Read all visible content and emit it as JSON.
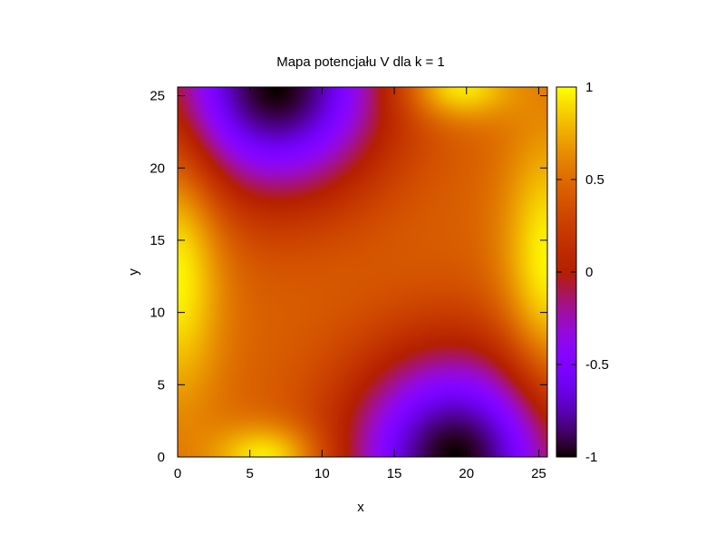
{
  "chart_data": {
    "type": "heatmap",
    "title": "Mapa potencjału V dla k = 1",
    "xlabel": "x",
    "ylabel": "y",
    "xlim": [
      0,
      25.6
    ],
    "ylim": [
      0,
      25.6
    ],
    "x_ticks": [
      0,
      5,
      10,
      15,
      20,
      25
    ],
    "y_ticks": [
      0,
      5,
      10,
      15,
      20,
      25
    ],
    "x_tick_labels": [
      "0",
      "5",
      "10",
      "15",
      "20",
      "25"
    ],
    "y_tick_labels": [
      "0",
      "5",
      "10",
      "15",
      "20",
      "25"
    ],
    "colorbar": {
      "range": [
        -1,
        1
      ],
      "ticks": [
        -1,
        -0.5,
        0,
        0.5,
        1
      ],
      "tick_labels": [
        "-1",
        "-0.5",
        "0",
        "0.5",
        "1"
      ],
      "palette": "gnuplot (black-purple-red-orange-yellow)"
    },
    "features": [
      {
        "kind": "minimum",
        "value": -1,
        "x": 6.8,
        "y": 25.6
      },
      {
        "kind": "minimum",
        "value": -1,
        "x": 19.2,
        "y": 0
      },
      {
        "kind": "maximum",
        "value": 1,
        "x": 6.2,
        "y": 0
      },
      {
        "kind": "maximum",
        "value": 1,
        "x": 19.4,
        "y": 25.6
      },
      {
        "kind": "maximum",
        "value": 1,
        "x": 0,
        "y": 13
      },
      {
        "kind": "maximum",
        "value": 1,
        "x": 25.6,
        "y": 13
      }
    ]
  }
}
